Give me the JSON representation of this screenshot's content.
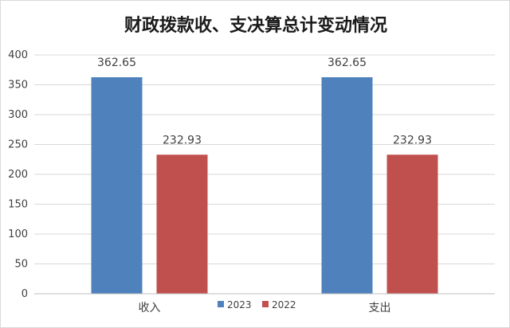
{
  "chart_data": {
    "type": "bar",
    "title": "财政拨款收、支决算总计变动情况",
    "xlabel": "",
    "ylabel": "",
    "categories": [
      "收入",
      "支出"
    ],
    "series": [
      {
        "name": "2023",
        "values": [
          362.65,
          362.65
        ],
        "color": "#4f81bd"
      },
      {
        "name": "2022",
        "values": [
          232.93,
          232.93
        ],
        "color": "#c0504d"
      }
    ],
    "data_labels": [
      "362.65",
      "362.65",
      "232.93",
      "232.93"
    ],
    "ylim": [
      0,
      400
    ],
    "yticks": [
      0,
      50,
      100,
      150,
      200,
      250,
      300,
      350,
      400
    ],
    "grid": true,
    "legend_position": "bottom-center"
  }
}
